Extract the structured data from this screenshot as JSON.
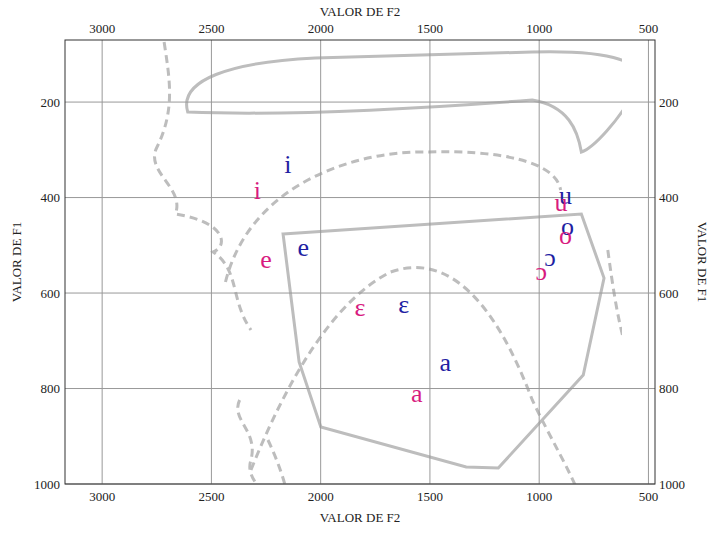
{
  "chart_data": {
    "type": "scatter",
    "x_label": "VALOR DE F2",
    "y_label": "VALOR DE F1",
    "xlim": [
      3170,
      470
    ],
    "ylim": [
      70,
      1000
    ],
    "xticks": [
      3000,
      2500,
      2000,
      1500,
      1000,
      500
    ],
    "yticks": [
      200,
      400,
      600,
      800,
      1000
    ],
    "grid": true,
    "marker": "text",
    "series": [
      {
        "color": "#1f1fa3",
        "labels": [
          "i",
          "e",
          "ɛ",
          "a",
          "ɔ",
          "o",
          "u"
        ],
        "x": [
          2150,
          2080,
          1620,
          1430,
          950,
          870,
          880
        ],
        "values": [
          330,
          505,
          625,
          745,
          525,
          460,
          395
        ]
      },
      {
        "color": "#d81b7f",
        "labels": [
          "i",
          "e",
          "ɛ",
          "a",
          "ɔ",
          "o",
          "u"
        ],
        "x": [
          2290,
          2250,
          1820,
          1560,
          990,
          880,
          900
        ],
        "values": [
          385,
          530,
          630,
          810,
          555,
          480,
          410
        ]
      }
    ]
  }
}
